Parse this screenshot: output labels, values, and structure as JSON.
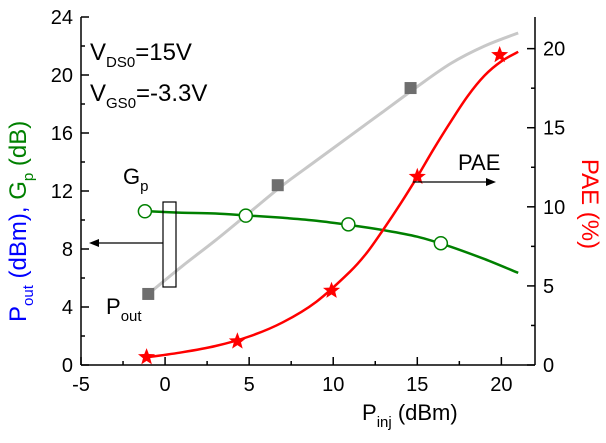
{
  "chart_data": {
    "type": "line",
    "annotations": {
      "vds_main": "V",
      "vds_sub": "DS0",
      "vds_value": "=15V",
      "vgs_main": "V",
      "vgs_sub": "GS0",
      "vgs_value": "=-3.3V",
      "gp_main": "G",
      "gp_sub": "p",
      "pout_main": "P",
      "pout_sub": "out",
      "pae": "PAE"
    },
    "xaxis": {
      "label_main": "P",
      "label_sub": "inj",
      "label_rest": " (dBm)",
      "range": [
        -5,
        22
      ],
      "ticks": [
        -5,
        0,
        5,
        10,
        15,
        20
      ],
      "tick_labels": [
        "-5",
        "0",
        "5",
        "10",
        "15",
        "20"
      ]
    },
    "yaxis_left": {
      "label_parts": [
        {
          "text": "P",
          "color": "#0000ff",
          "sub": false
        },
        {
          "text": "out",
          "color": "#0000ff",
          "sub": true
        },
        {
          "text": " (dBm), ",
          "color": "#0000ff",
          "sub": false
        },
        {
          "text": "G",
          "color": "#008000",
          "sub": false
        },
        {
          "text": "p",
          "color": "#008000",
          "sub": true
        },
        {
          "text": " (dB)",
          "color": "#008000",
          "sub": false
        }
      ],
      "range": [
        0,
        24
      ],
      "ticks": [
        0,
        4,
        8,
        12,
        16,
        20,
        24
      ],
      "tick_labels": [
        "0",
        "4",
        "8",
        "12",
        "16",
        "20",
        "24"
      ]
    },
    "yaxis_right": {
      "label": "PAE (%)",
      "label_color": "#ff0000",
      "range": [
        0,
        22
      ],
      "ticks": [
        0,
        5,
        10,
        15,
        20
      ],
      "tick_labels": [
        "0",
        "5",
        "10",
        "15",
        "20"
      ]
    },
    "series": [
      {
        "key": "pout",
        "axis": "left",
        "color": "#c8c8c8",
        "marker": "square",
        "marker_color": "#6e6e6e",
        "curve_x": [
          -1,
          1,
          3,
          5,
          7,
          9,
          11,
          13,
          15,
          17,
          19,
          21
        ],
        "curve_y": [
          4.9,
          6.8,
          8.6,
          10.5,
          12.4,
          14.1,
          15.8,
          17.5,
          19.2,
          20.8,
          22.0,
          22.9
        ],
        "markers_x": [
          -1,
          6.7,
          14.6
        ],
        "markers_y": [
          4.9,
          12.4,
          19.1
        ]
      },
      {
        "key": "gp",
        "axis": "left",
        "color": "#008000",
        "marker": "circle",
        "marker_color": "#008000",
        "curve_x": [
          -1,
          1,
          3,
          5,
          7,
          9,
          11,
          13,
          15,
          17,
          19,
          21
        ],
        "curve_y": [
          10.6,
          10.5,
          10.45,
          10.3,
          10.15,
          9.95,
          9.65,
          9.3,
          8.85,
          8.15,
          7.3,
          6.35
        ],
        "markers_x": [
          -1.2,
          4.8,
          10.9,
          16.4
        ],
        "markers_y": [
          10.6,
          10.3,
          9.7,
          8.4
        ]
      },
      {
        "key": "pae",
        "axis": "right",
        "color": "#ff0000",
        "marker": "star",
        "marker_color": "#ff0000",
        "curve_x": [
          -1,
          1,
          3,
          5,
          7,
          9,
          11,
          12,
          13,
          14,
          15,
          16,
          17,
          18,
          19,
          20,
          21
        ],
        "curve_y": [
          0.5,
          0.8,
          1.2,
          1.8,
          2.7,
          4.0,
          5.9,
          7.1,
          8.6,
          10.2,
          11.9,
          13.7,
          15.4,
          17.0,
          18.3,
          19.2,
          19.8
        ],
        "markers_x": [
          -1.1,
          4.3,
          9.9,
          15.0,
          19.9
        ],
        "markers_y": [
          0.5,
          1.5,
          4.7,
          11.9,
          19.6
        ]
      }
    ]
  }
}
